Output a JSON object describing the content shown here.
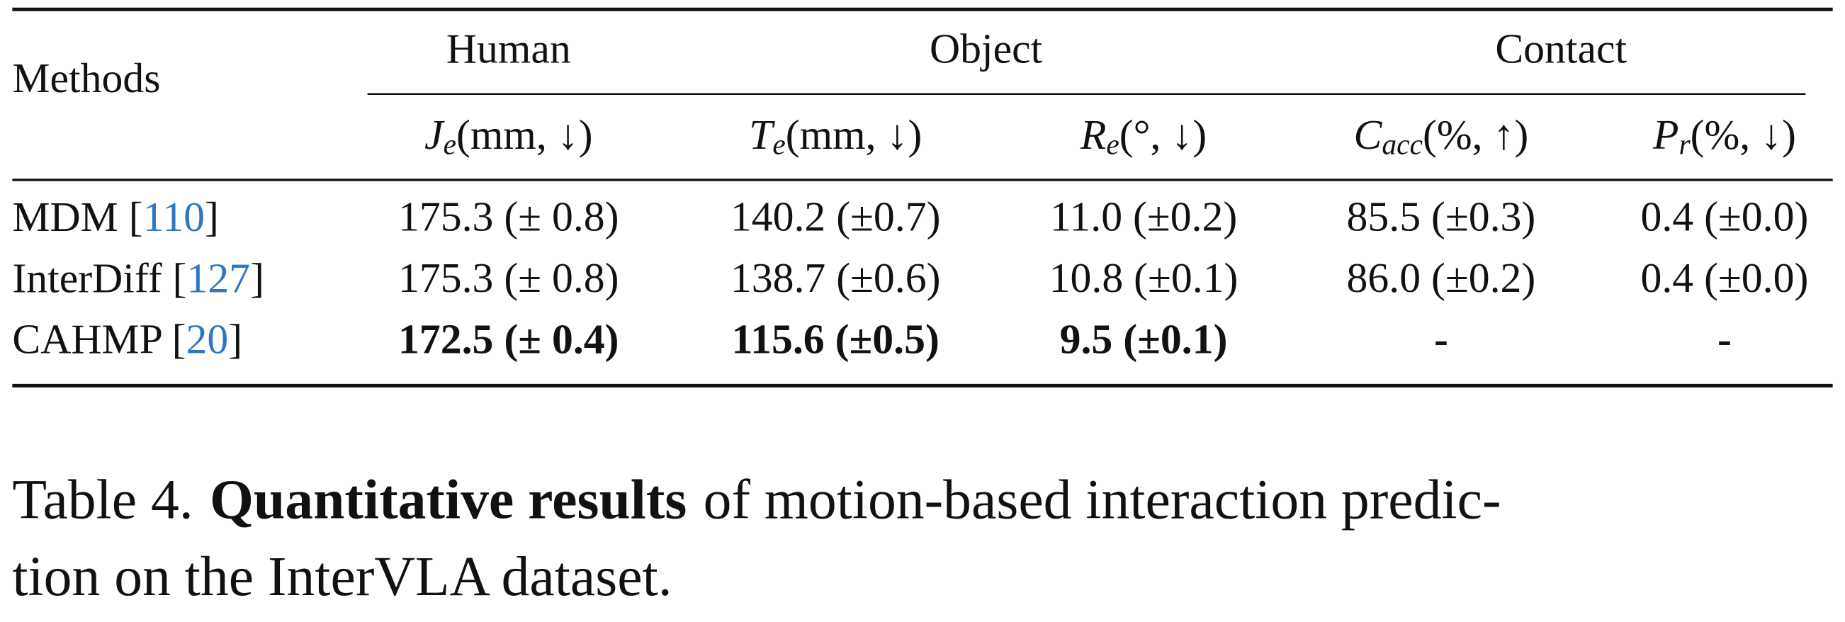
{
  "table": {
    "row_header": "Methods",
    "header_groups": [
      "Human",
      "Object",
      "Contact"
    ],
    "columns": [
      {
        "symbol": "J",
        "sub": "e",
        "unit": "(mm, ↓)"
      },
      {
        "symbol": "T",
        "sub": "e",
        "unit": "(mm, ↓)"
      },
      {
        "symbol": "R",
        "sub": "e",
        "unit": "(°, ↓)"
      },
      {
        "symbol": "C",
        "sub": "acc",
        "unit": "(%, ↑)"
      },
      {
        "symbol": "P",
        "sub": "r",
        "unit": "(%, ↓)"
      }
    ],
    "rows": [
      {
        "method": "MDM [",
        "ref": "110",
        "close": "]",
        "bold": false,
        "cells": [
          "175.3 (± 0.8)",
          "140.2 (±0.7)",
          "11.0 (±0.2)",
          "85.5 (±0.3)",
          "0.4 (±0.0)"
        ]
      },
      {
        "method": "InterDiff [",
        "ref": "127",
        "close": "]",
        "bold": false,
        "cells": [
          "175.3 (± 0.8)",
          "138.7 (±0.6)",
          "10.8 (±0.1)",
          "86.0 (±0.2)",
          "0.4 (±0.0)"
        ]
      },
      {
        "method": "CAHMP [",
        "ref": "20",
        "close": "]",
        "bold": true,
        "cells": [
          "172.5 (± 0.4)",
          "115.6 (±0.5)",
          "9.5 (±0.1)",
          "-",
          "-"
        ]
      }
    ]
  },
  "caption": {
    "label": "Table 4.",
    "bold": "Quantitative results",
    "lines": [
      "of motion-based interaction predic-",
      "tion on the InterVLA dataset."
    ]
  }
}
